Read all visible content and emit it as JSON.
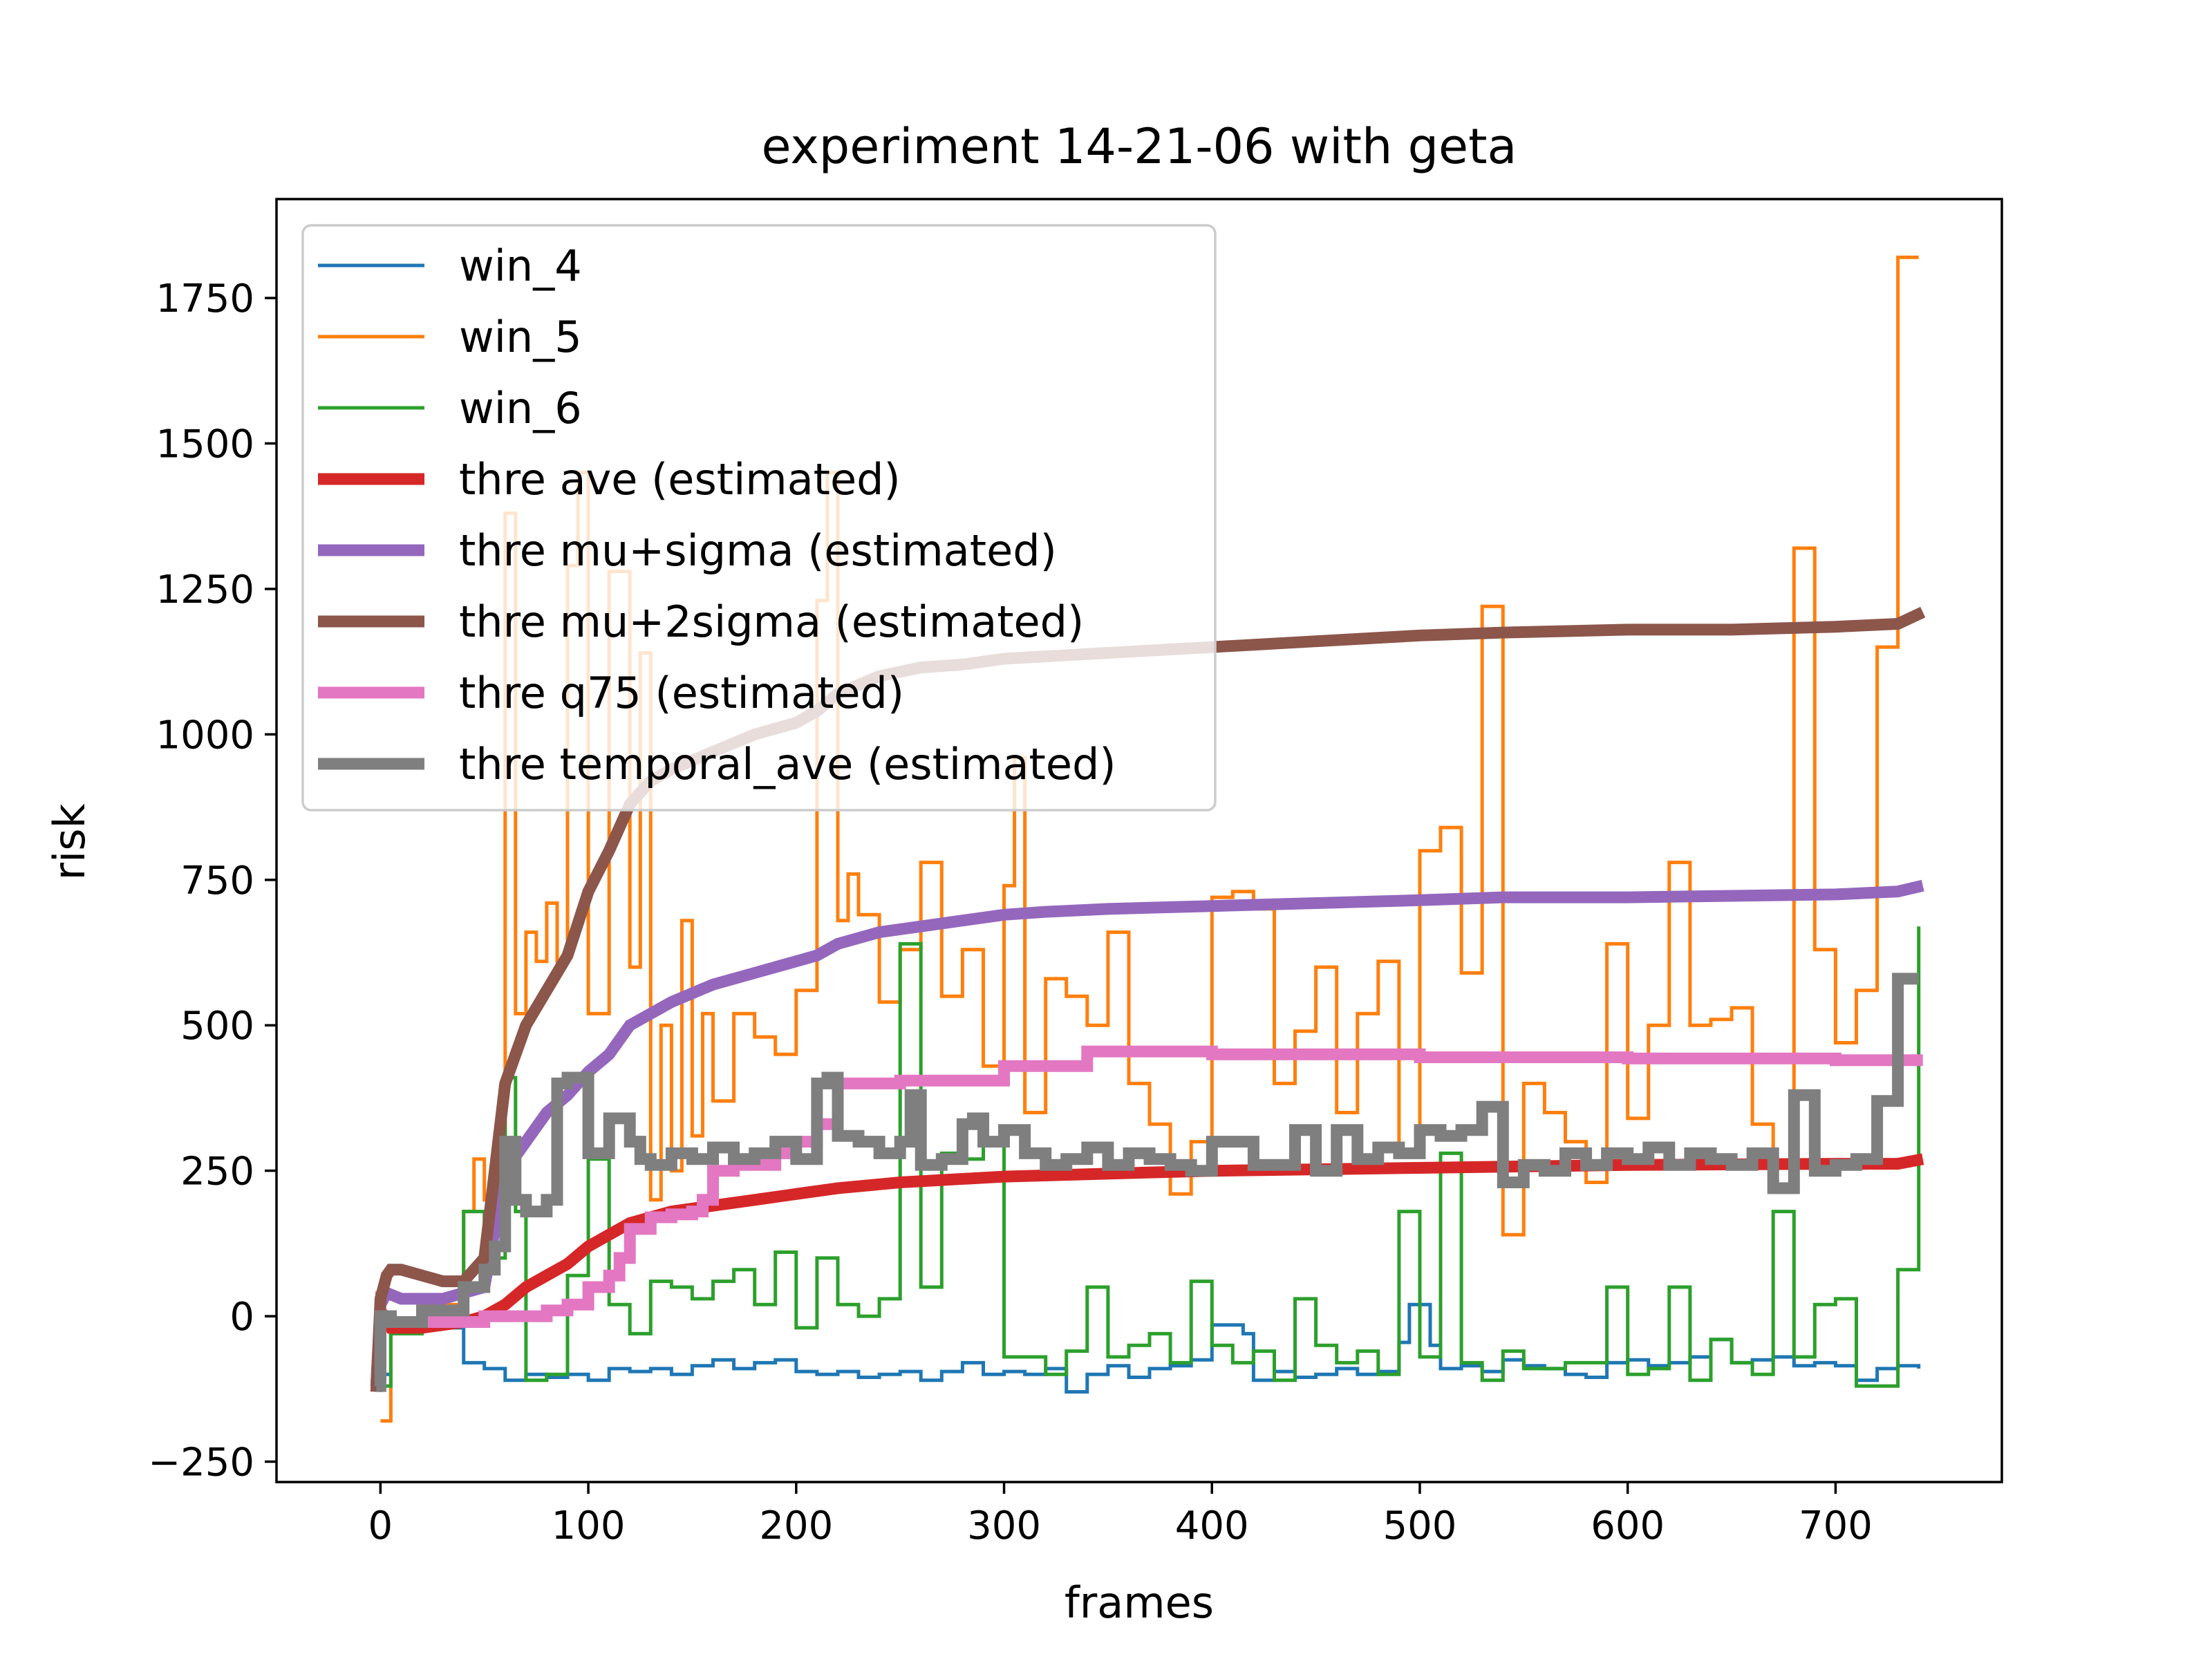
{
  "chart_data": {
    "type": "line",
    "title": "experiment 14-21-06 with geta",
    "xlabel": "frames",
    "ylabel": "risk",
    "xlim": [
      -50,
      780
    ],
    "ylim": [
      -285,
      1920
    ],
    "xticks": [
      0,
      100,
      200,
      300,
      400,
      500,
      600,
      700
    ],
    "xtick_labels": [
      "0",
      "100",
      "200",
      "300",
      "400",
      "500",
      "600",
      "700"
    ],
    "yticks": [
      -250,
      0,
      250,
      500,
      750,
      1000,
      1250,
      1500,
      1750
    ],
    "ytick_labels": [
      "−250",
      "0",
      "250",
      "500",
      "750",
      "1000",
      "1250",
      "1500",
      "1750"
    ],
    "grid": false,
    "legend_position": "upper-left",
    "series": [
      {
        "name": "win_4",
        "color": "#1f77b4",
        "style": "step",
        "width": "thin",
        "x": [
          0,
          5,
          20,
          35,
          40,
          50,
          60,
          70,
          80,
          90,
          100,
          110,
          120,
          130,
          140,
          150,
          160,
          170,
          180,
          190,
          200,
          210,
          220,
          230,
          240,
          250,
          260,
          270,
          280,
          290,
          300,
          310,
          320,
          330,
          340,
          350,
          360,
          370,
          380,
          390,
          400,
          405,
          415,
          420,
          430,
          440,
          450,
          460,
          470,
          480,
          490,
          495,
          505,
          510,
          520,
          530,
          540,
          550,
          560,
          570,
          580,
          590,
          600,
          610,
          620,
          630,
          640,
          650,
          660,
          670,
          680,
          690,
          700,
          710,
          720,
          730,
          740
        ],
        "y": [
          -100,
          -20,
          -10,
          -20,
          -80,
          -90,
          -110,
          -100,
          -105,
          -100,
          -110,
          -90,
          -95,
          -90,
          -100,
          -85,
          -75,
          -90,
          -80,
          -75,
          -95,
          -100,
          -95,
          -105,
          -100,
          -95,
          -110,
          -95,
          -80,
          -100,
          -95,
          -100,
          -90,
          -130,
          -100,
          -85,
          -105,
          -90,
          -85,
          -75,
          -15,
          -15,
          -30,
          -110,
          -95,
          -105,
          -100,
          -90,
          -100,
          -95,
          -45,
          20,
          -50,
          -90,
          -85,
          -95,
          -75,
          -85,
          -90,
          -100,
          -105,
          -80,
          -75,
          -85,
          -80,
          -70,
          -40,
          -80,
          -75,
          -70,
          -85,
          -80,
          -85,
          -110,
          -90,
          -85,
          -90
        ]
      },
      {
        "name": "win_5",
        "color": "#ff7f0e",
        "style": "step",
        "width": "thin",
        "x": [
          0,
          5,
          20,
          40,
          45,
          50,
          55,
          60,
          65,
          70,
          75,
          80,
          85,
          90,
          95,
          100,
          110,
          120,
          125,
          130,
          135,
          140,
          145,
          150,
          155,
          160,
          170,
          180,
          190,
          200,
          210,
          215,
          220,
          225,
          230,
          240,
          250,
          260,
          270,
          280,
          290,
          300,
          305,
          310,
          320,
          330,
          340,
          350,
          360,
          370,
          380,
          390,
          400,
          410,
          420,
          430,
          440,
          450,
          460,
          470,
          480,
          490,
          500,
          510,
          520,
          530,
          540,
          550,
          560,
          570,
          580,
          590,
          600,
          610,
          620,
          630,
          640,
          650,
          660,
          670,
          680,
          690,
          700,
          710,
          720,
          730,
          740
        ],
        "y": [
          -180,
          -20,
          20,
          180,
          270,
          200,
          250,
          1380,
          520,
          660,
          610,
          710,
          610,
          1290,
          1450,
          520,
          1280,
          600,
          1140,
          200,
          500,
          250,
          680,
          310,
          520,
          370,
          520,
          480,
          450,
          560,
          1230,
          1450,
          680,
          760,
          690,
          540,
          630,
          780,
          550,
          630,
          430,
          740,
          960,
          350,
          580,
          550,
          500,
          660,
          400,
          330,
          210,
          300,
          720,
          730,
          700,
          400,
          490,
          600,
          350,
          520,
          610,
          280,
          800,
          840,
          590,
          1220,
          140,
          400,
          350,
          300,
          230,
          640,
          340,
          500,
          780,
          500,
          510,
          530,
          330,
          220,
          1320,
          630,
          470,
          560,
          1150,
          1820,
          1820
        ]
      },
      {
        "name": "win_6",
        "color": "#2ca02c",
        "style": "step",
        "width": "thin",
        "x": [
          0,
          5,
          20,
          35,
          40,
          50,
          60,
          65,
          70,
          80,
          90,
          100,
          110,
          120,
          130,
          140,
          150,
          160,
          170,
          180,
          190,
          200,
          210,
          220,
          230,
          240,
          250,
          260,
          270,
          280,
          290,
          300,
          310,
          320,
          330,
          340,
          350,
          360,
          370,
          380,
          390,
          400,
          410,
          420,
          430,
          440,
          450,
          460,
          470,
          480,
          490,
          500,
          510,
          520,
          530,
          540,
          550,
          560,
          570,
          580,
          590,
          600,
          610,
          620,
          630,
          640,
          650,
          660,
          670,
          680,
          690,
          700,
          710,
          720,
          730,
          740
        ],
        "y": [
          -120,
          -30,
          -10,
          0,
          180,
          100,
          410,
          180,
          -110,
          -100,
          70,
          270,
          20,
          -30,
          60,
          50,
          30,
          60,
          80,
          20,
          110,
          -20,
          100,
          20,
          0,
          30,
          640,
          50,
          280,
          270,
          300,
          -70,
          -70,
          -100,
          -60,
          50,
          -70,
          -50,
          -30,
          -80,
          60,
          -50,
          -80,
          -60,
          -110,
          30,
          -50,
          -80,
          -60,
          -100,
          180,
          -70,
          280,
          -80,
          -110,
          -60,
          -90,
          -90,
          -80,
          -80,
          50,
          -100,
          -90,
          50,
          -110,
          -40,
          -80,
          -100,
          180,
          -70,
          20,
          30,
          -120,
          -120,
          80,
          670
        ]
      },
      {
        "name": "thre ave (estimated)",
        "color": "#d62728",
        "style": "line",
        "width": "thick",
        "x": [
          -2,
          0,
          5,
          20,
          40,
          50,
          60,
          70,
          80,
          90,
          100,
          120,
          140,
          160,
          180,
          200,
          220,
          250,
          300,
          400,
          500,
          600,
          700,
          730,
          742
        ],
        "y": [
          -120,
          10,
          -20,
          -20,
          -10,
          0,
          20,
          50,
          70,
          90,
          120,
          160,
          180,
          190,
          200,
          210,
          220,
          230,
          240,
          250,
          255,
          260,
          262,
          262,
          270
        ]
      },
      {
        "name": "thre mu+sigma (estimated)",
        "color": "#9467bd",
        "style": "line",
        "width": "thick",
        "x": [
          -2,
          0,
          3,
          10,
          20,
          30,
          40,
          50,
          60,
          70,
          80,
          90,
          100,
          110,
          120,
          130,
          140,
          160,
          180,
          200,
          210,
          220,
          240,
          260,
          280,
          300,
          320,
          350,
          400,
          450,
          500,
          540,
          600,
          700,
          730,
          742
        ],
        "y": [
          -120,
          20,
          40,
          30,
          30,
          30,
          40,
          50,
          250,
          300,
          350,
          380,
          420,
          450,
          500,
          520,
          540,
          570,
          590,
          610,
          620,
          640,
          660,
          670,
          680,
          690,
          695,
          700,
          705,
          710,
          715,
          720,
          720,
          725,
          730,
          740
        ]
      },
      {
        "name": "thre mu+2sigma (estimated)",
        "color": "#8c564b",
        "style": "line",
        "width": "thick",
        "x": [
          -2,
          0,
          3,
          5,
          10,
          20,
          30,
          40,
          50,
          60,
          70,
          80,
          90,
          100,
          110,
          120,
          130,
          140,
          160,
          180,
          200,
          210,
          220,
          240,
          260,
          280,
          300,
          350,
          400,
          450,
          500,
          540,
          600,
          650,
          700,
          730,
          742
        ],
        "y": [
          -130,
          30,
          70,
          80,
          80,
          70,
          60,
          60,
          100,
          400,
          500,
          560,
          620,
          730,
          800,
          880,
          920,
          940,
          970,
          1000,
          1020,
          1040,
          1070,
          1100,
          1115,
          1120,
          1130,
          1140,
          1150,
          1160,
          1170,
          1175,
          1180,
          1180,
          1185,
          1190,
          1210
        ]
      },
      {
        "name": "thre q75 (estimated)",
        "color": "#e377c2",
        "style": "step",
        "width": "thick",
        "x": [
          -2,
          0,
          5,
          20,
          35,
          40,
          50,
          60,
          70,
          80,
          90,
          100,
          110,
          115,
          120,
          130,
          140,
          150,
          155,
          160,
          170,
          180,
          190,
          200,
          210,
          220,
          250,
          300,
          340,
          400,
          500,
          600,
          700,
          742
        ],
        "y": [
          -100,
          0,
          -10,
          -10,
          -10,
          -10,
          0,
          0,
          0,
          10,
          20,
          50,
          70,
          100,
          150,
          170,
          175,
          180,
          200,
          250,
          260,
          260,
          280,
          300,
          330,
          400,
          405,
          430,
          455,
          450,
          445,
          443,
          440,
          440
        ]
      },
      {
        "name": "thre temporal_ave (estimated)",
        "color": "#7f7f7f",
        "style": "step",
        "width": "thick",
        "x": [
          -2,
          0,
          5,
          20,
          35,
          40,
          50,
          55,
          60,
          65,
          70,
          80,
          85,
          90,
          100,
          110,
          120,
          125,
          130,
          140,
          150,
          160,
          170,
          180,
          190,
          200,
          210,
          215,
          220,
          230,
          240,
          250,
          255,
          260,
          270,
          280,
          285,
          290,
          300,
          310,
          320,
          330,
          340,
          350,
          360,
          370,
          380,
          390,
          400,
          410,
          420,
          430,
          440,
          450,
          460,
          470,
          480,
          490,
          500,
          510,
          520,
          530,
          540,
          550,
          560,
          570,
          580,
          590,
          600,
          610,
          620,
          630,
          640,
          650,
          660,
          670,
          680,
          690,
          700,
          710,
          720,
          730,
          740
        ],
        "y": [
          -120,
          0,
          -10,
          10,
          10,
          50,
          80,
          120,
          300,
          200,
          180,
          200,
          400,
          410,
          280,
          340,
          300,
          270,
          260,
          280,
          270,
          290,
          270,
          280,
          300,
          270,
          400,
          410,
          310,
          300,
          280,
          300,
          380,
          260,
          270,
          330,
          340,
          300,
          320,
          280,
          260,
          270,
          290,
          260,
          280,
          270,
          260,
          250,
          300,
          300,
          260,
          260,
          320,
          250,
          320,
          270,
          290,
          280,
          320,
          310,
          320,
          360,
          230,
          260,
          250,
          280,
          260,
          280,
          270,
          290,
          260,
          280,
          270,
          260,
          280,
          220,
          380,
          250,
          260,
          270,
          370,
          580,
          580
        ]
      }
    ]
  }
}
